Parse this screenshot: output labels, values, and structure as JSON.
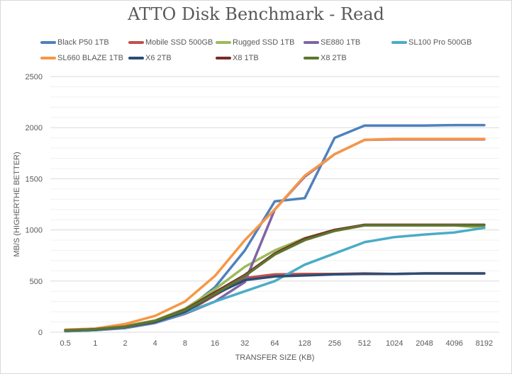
{
  "chart_data": {
    "type": "line",
    "title": "ATTO Disk Benchmark - Read",
    "xlabel": "TRANSFER SIZE (KB)",
    "ylabel": "MB/S (HIGHERTHE BETTER)",
    "categories": [
      "0.5",
      "1",
      "2",
      "4",
      "8",
      "16",
      "32",
      "64",
      "128",
      "256",
      "512",
      "1024",
      "2048",
      "4096",
      "8192"
    ],
    "yticks": [
      "0",
      "500",
      "1000",
      "1500",
      "2000",
      "2500"
    ],
    "ylim": [
      0,
      2500
    ],
    "grid": "major and minor horizontal",
    "legend": "top",
    "series": [
      {
        "name": "Black P50 1TB",
        "color": "#4f81bd",
        "values": [
          20,
          30,
          55,
          100,
          210,
          440,
          800,
          1280,
          1310,
          1900,
          2020,
          2020,
          2020,
          2025,
          2025
        ]
      },
      {
        "name": "Mobile SSD 500GB",
        "color": "#c0504d",
        "values": [
          15,
          25,
          50,
          95,
          190,
          360,
          530,
          565,
          570,
          570,
          575,
          570,
          575,
          575,
          575
        ]
      },
      {
        "name": "Rugged SSD 1TB",
        "color": "#9bbb59",
        "values": [
          18,
          30,
          60,
          115,
          230,
          420,
          640,
          800,
          920,
          1000,
          1045,
          1045,
          1045,
          1045,
          1020
        ]
      },
      {
        "name": "SE880 1TB",
        "color": "#8064a2",
        "values": [
          10,
          20,
          40,
          90,
          180,
          300,
          490,
          1200,
          1520,
          1740,
          1880,
          1885,
          1885,
          1885,
          1885
        ]
      },
      {
        "name": "SL100 Pro 500GB",
        "color": "#4bacc6",
        "values": [
          10,
          20,
          45,
          95,
          190,
          300,
          400,
          500,
          660,
          770,
          880,
          930,
          955,
          975,
          1020
        ]
      },
      {
        "name": "SL660 BLAZE 1TB",
        "color": "#f79646",
        "values": [
          25,
          35,
          80,
          160,
          300,
          550,
          900,
          1200,
          1530,
          1740,
          1880,
          1890,
          1890,
          1890,
          1890
        ]
      },
      {
        "name": "X6 2TB",
        "color": "#2c4d75",
        "values": [
          15,
          25,
          50,
          100,
          200,
          370,
          510,
          545,
          555,
          565,
          570,
          570,
          575,
          575,
          575
        ]
      },
      {
        "name": "X8 1TB",
        "color": "#772c2a",
        "values": [
          18,
          30,
          55,
          110,
          220,
          390,
          560,
          770,
          915,
          1000,
          1050,
          1050,
          1050,
          1050,
          1050
        ]
      },
      {
        "name": "X8 2TB",
        "color": "#5f7530",
        "values": [
          18,
          30,
          55,
          110,
          215,
          375,
          550,
          760,
          900,
          990,
          1045,
          1045,
          1045,
          1045,
          1045
        ]
      }
    ]
  }
}
